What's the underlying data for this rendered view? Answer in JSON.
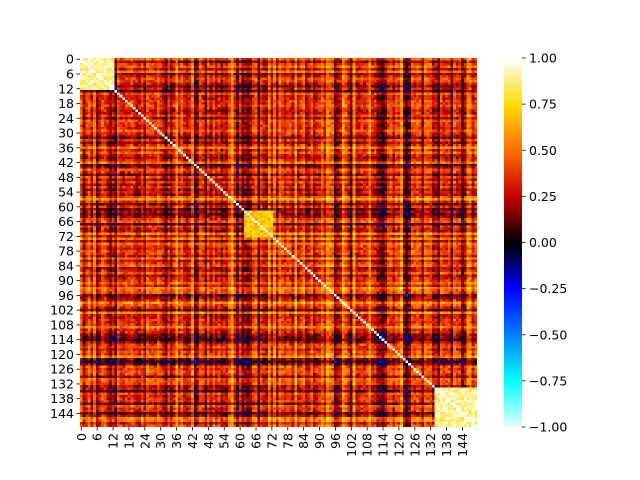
{
  "chart_data": {
    "type": "heatmap",
    "title": "",
    "xlabel": "",
    "ylabel": "",
    "n_rows": 150,
    "n_cols": 150,
    "row_tick_labels": [
      "0",
      "6",
      "12",
      "18",
      "24",
      "30",
      "36",
      "42",
      "48",
      "54",
      "60",
      "66",
      "72",
      "78",
      "84",
      "90",
      "96",
      "102",
      "108",
      "114",
      "120",
      "126",
      "132",
      "138",
      "144"
    ],
    "col_tick_labels": [
      "0",
      "6",
      "12",
      "18",
      "24",
      "30",
      "36",
      "42",
      "48",
      "54",
      "60",
      "66",
      "72",
      "78",
      "84",
      "90",
      "96",
      "102",
      "108",
      "114",
      "120",
      "126",
      "132",
      "138",
      "144"
    ],
    "tick_step": 6,
    "value_range": [
      -1.0,
      1.0
    ],
    "colormap": "hot-cold diverging (cyan-blue-black-red-yellow-white)",
    "colorbar": {
      "ticks": [
        1.0,
        0.75,
        0.5,
        0.25,
        0.0,
        -0.25,
        -0.5,
        -0.75,
        -1.0
      ],
      "tick_labels": [
        "1.00",
        "0.75",
        "0.50",
        "0.25",
        "0.00",
        "−0.25",
        "−0.50",
        "−0.75",
        "−1.00"
      ]
    },
    "diagonal_value": 1.0,
    "high_correlation_blocks": [
      {
        "rows": [
          0,
          12
        ],
        "cols": [
          0,
          12
        ],
        "level": 0.9
      },
      {
        "rows": [
          62,
          72
        ],
        "cols": [
          62,
          72
        ],
        "level": 0.7
      },
      {
        "rows": [
          134,
          149
        ],
        "cols": [
          134,
          149
        ],
        "level": 0.9
      }
    ]
  }
}
